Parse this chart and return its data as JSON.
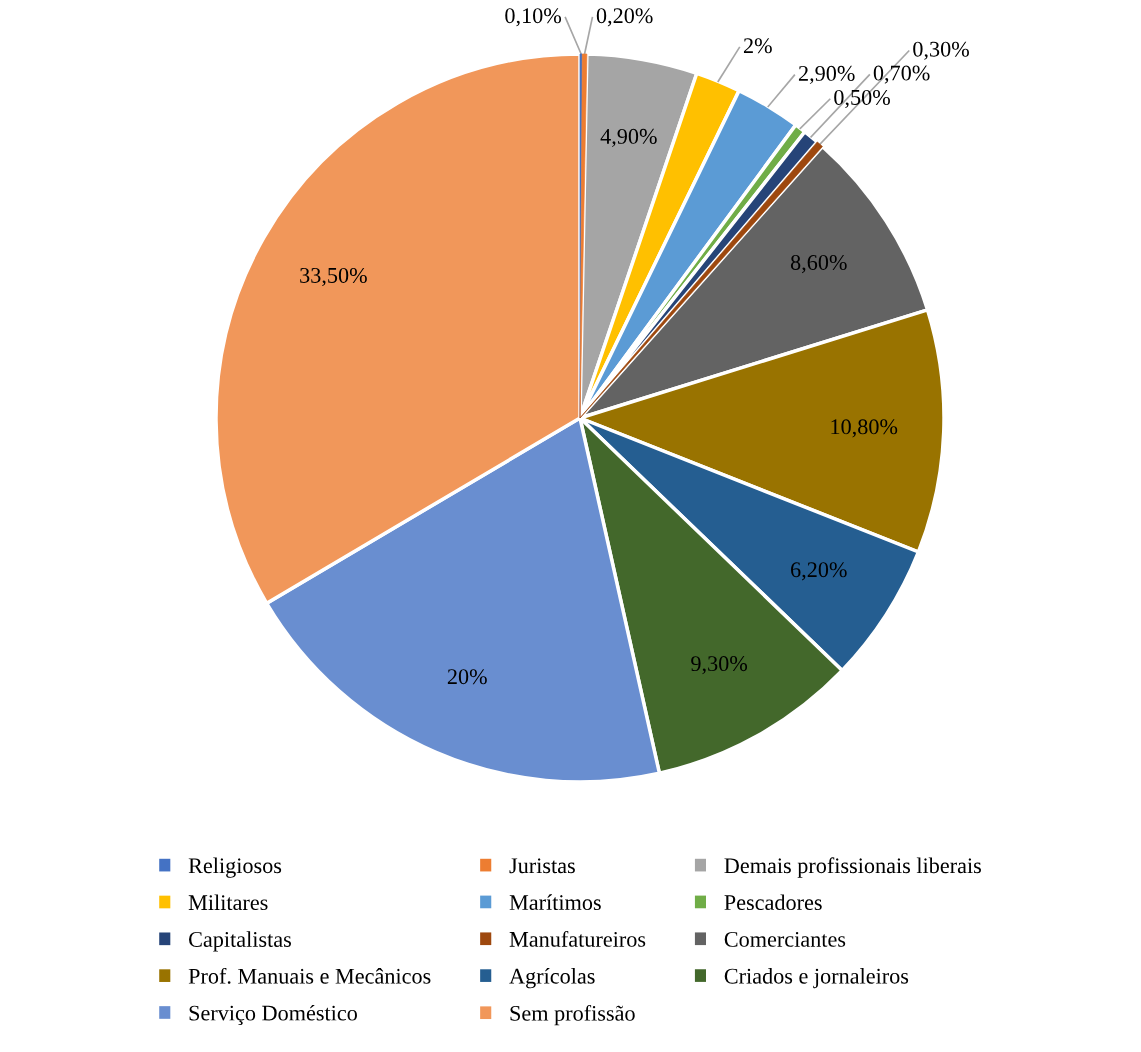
{
  "chart_data": {
    "type": "pie",
    "categories": [
      "Religiosos",
      "Juristas",
      "Demais profissionais liberais",
      "Militares",
      "Marítimos",
      "Pescadores",
      "Capitalistas",
      "Manufatureiros",
      "Comerciantes",
      "Prof. Manuais e Mecânicos",
      "Agrícolas",
      "Criados e jornaleiros",
      "Serviço Doméstico",
      "Sem profissão"
    ],
    "values": [
      0.1,
      0.2,
      4.9,
      2,
      2.9,
      0.5,
      0.7,
      0.3,
      8.6,
      10.8,
      6.2,
      9.3,
      20,
      33.5
    ],
    "value_labels": [
      "0,10%",
      "0,20%",
      "4,90%",
      "2%",
      "2,90%",
      "0,50%",
      "0,70%",
      "0,30%",
      "8,60%",
      "10,80%",
      "6,20%",
      "9,30%",
      "20%",
      "33,50%"
    ],
    "colors": [
      "#4472c4",
      "#ed7d31",
      "#a5a5a5",
      "#ffc000",
      "#5b9bd5",
      "#70ad47",
      "#264478",
      "#9e480e",
      "#636363",
      "#997300",
      "#255e91",
      "#43682b",
      "#698ed0",
      "#f1975a"
    ],
    "legend": "bottom"
  }
}
